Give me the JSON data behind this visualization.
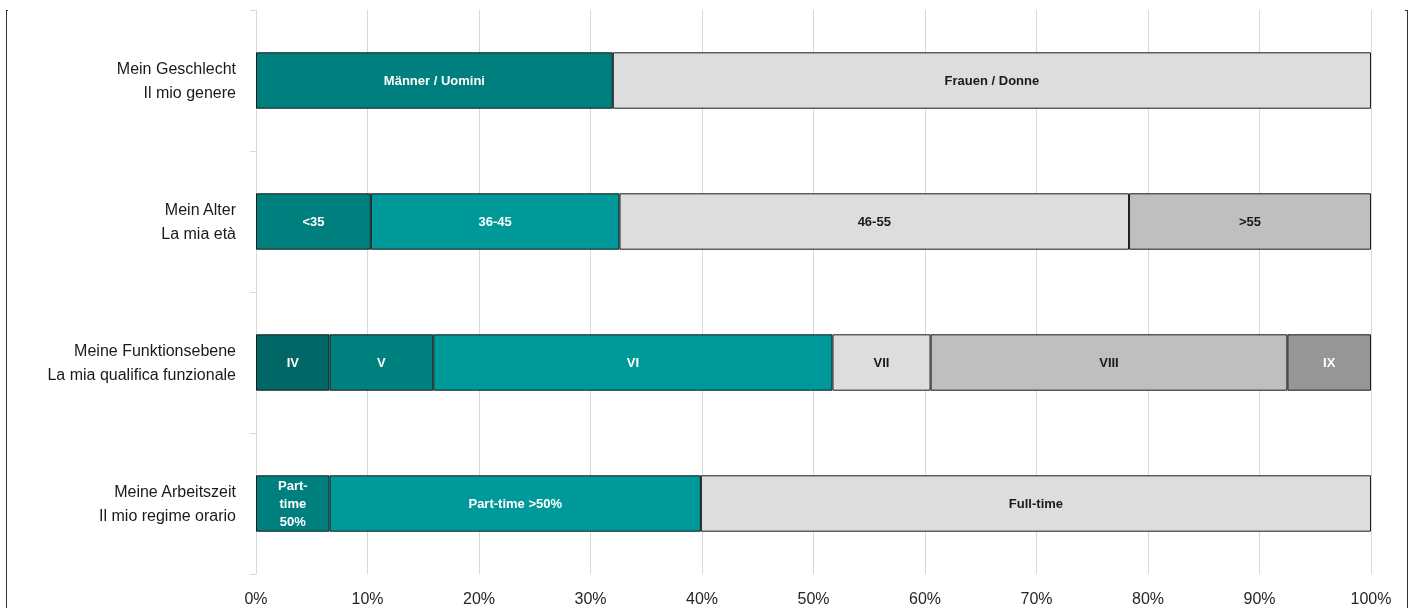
{
  "chart_data": {
    "type": "bar",
    "orientation": "horizontal",
    "stacked": true,
    "categories": [
      "Mein Geschlecht\nIl mio genere",
      "Mein Alter\nLa mia età",
      "Meine Funktionsebene\nLa mia qualifica funzionale",
      "Meine Arbeitszeit\nIl mio regime orario"
    ],
    "series": [
      {
        "name": "Männer / Uomini",
        "color": "#007f7f",
        "values": [
          32.0,
          null,
          null,
          null
        ]
      },
      {
        "name": "Frauen / Donne",
        "color": "#dddddd",
        "values": [
          68.0,
          null,
          null,
          null
        ]
      },
      {
        "name": "<35",
        "color": "#007f7f",
        "values": [
          null,
          10.3,
          null,
          null
        ]
      },
      {
        "name": "36-45",
        "color": "#009999",
        "values": [
          null,
          22.3,
          null,
          null
        ]
      },
      {
        "name": "46-55",
        "color": "#dddddd",
        "values": [
          null,
          45.7,
          null,
          null
        ]
      },
      {
        "name": ">55",
        "color": "#bfbfbf",
        "values": [
          null,
          21.7,
          null,
          null
        ]
      },
      {
        "name": "IV",
        "color": "#006666",
        "values": [
          null,
          null,
          6.6,
          null
        ]
      },
      {
        "name": "V",
        "color": "#007f7f",
        "values": [
          null,
          null,
          9.3,
          null
        ]
      },
      {
        "name": "VI",
        "color": "#009999",
        "values": [
          null,
          null,
          35.8,
          null
        ]
      },
      {
        "name": "VII",
        "color": "#dddddd",
        "values": [
          null,
          null,
          8.8,
          null
        ]
      },
      {
        "name": "VIII",
        "color": "#bfbfbf",
        "values": [
          null,
          null,
          32.0,
          null
        ]
      },
      {
        "name": "IX",
        "color": "#969696",
        "values": [
          null,
          null,
          7.5,
          null
        ]
      },
      {
        "name": "Part-time 50%",
        "color": "#007f7f",
        "values": [
          null,
          null,
          null,
          6.6
        ]
      },
      {
        "name": "Part-time >50%",
        "color": "#009999",
        "values": [
          null,
          null,
          null,
          33.3
        ]
      },
      {
        "name": "Full-time",
        "color": "#dddddd",
        "values": [
          null,
          null,
          null,
          60.1
        ]
      }
    ],
    "xlim": [
      0,
      100
    ],
    "xticks": [
      {
        "value": 0,
        "label": "0%"
      },
      {
        "value": 10,
        "label": "10%"
      },
      {
        "value": 20,
        "label": "20%"
      },
      {
        "value": 30,
        "label": "30%"
      },
      {
        "value": 40,
        "label": "40%"
      },
      {
        "value": 50,
        "label": "50%"
      },
      {
        "value": 60,
        "label": "60%"
      },
      {
        "value": 70,
        "label": "70%"
      },
      {
        "value": 80,
        "label": "80%"
      },
      {
        "value": 90,
        "label": "90%"
      },
      {
        "value": 100,
        "label": "100%"
      }
    ],
    "grid": "x",
    "legend": false
  }
}
